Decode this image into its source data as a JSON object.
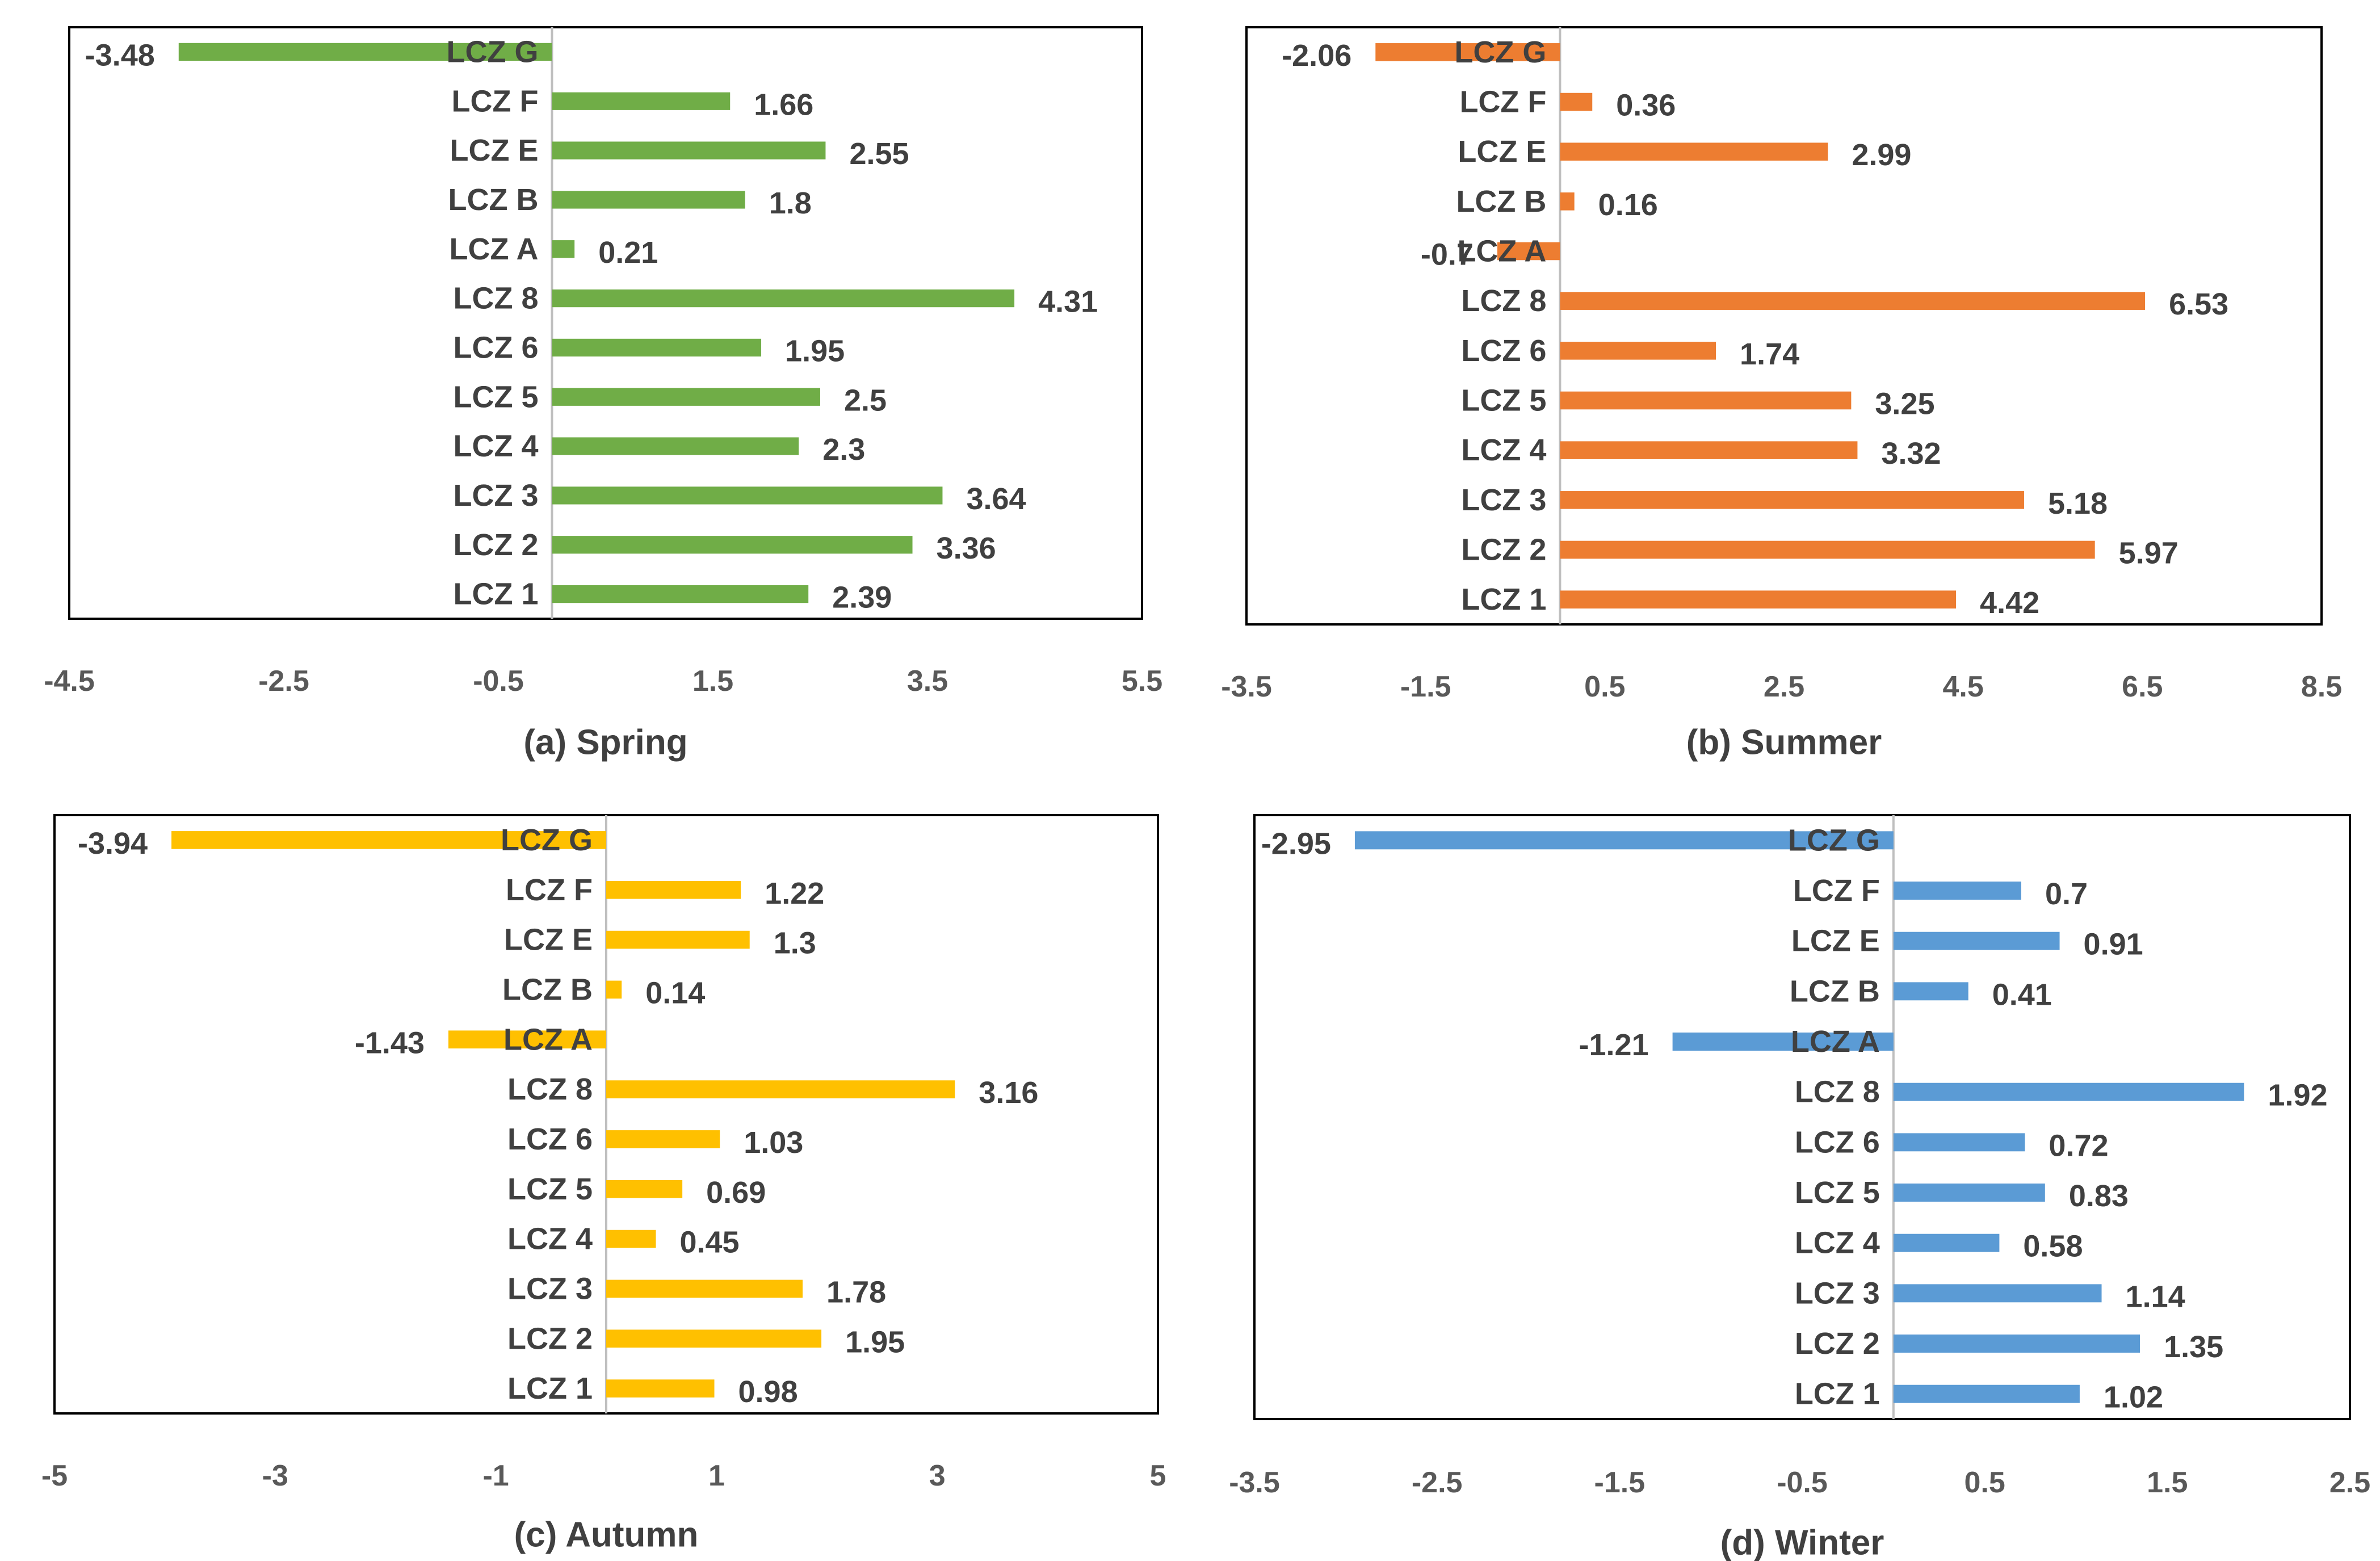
{
  "chart_data": [
    {
      "type": "bar",
      "orientation": "horizontal",
      "caption": "(a) Spring",
      "color": "#70AD47",
      "categories": [
        "LCZ G",
        "LCZ F",
        "LCZ E",
        "LCZ B",
        "LCZ A",
        "LCZ 8",
        "LCZ 6",
        "LCZ 5",
        "LCZ 4",
        "LCZ 3",
        "LCZ 2",
        "LCZ 1"
      ],
      "values": [
        -3.48,
        1.66,
        2.55,
        1.8,
        0.21,
        4.31,
        1.95,
        2.5,
        2.3,
        3.64,
        3.36,
        2.39
      ],
      "value_labels": [
        "-3.48",
        "1.66",
        "2.55",
        "1.8",
        "0.21",
        "4.31",
        "1.95",
        "2.5",
        "2.3",
        "3.64",
        "3.36",
        "2.39"
      ],
      "xlim": [
        -4.5,
        5.5
      ],
      "x_ticks": [
        "-4.5",
        "-2.5",
        "-0.5",
        "1.5",
        "3.5",
        "5.5"
      ],
      "grid": false,
      "legend": "none"
    },
    {
      "type": "bar",
      "orientation": "horizontal",
      "caption": "(b) Summer",
      "color": "#ED7D31",
      "categories": [
        "LCZ G",
        "LCZ F",
        "LCZ E",
        "LCZ B",
        "LCZ A",
        "LCZ 8",
        "LCZ 6",
        "LCZ 5",
        "LCZ 4",
        "LCZ 3",
        "LCZ 2",
        "LCZ 1"
      ],
      "values": [
        -2.06,
        0.36,
        2.99,
        0.16,
        -0.7,
        6.53,
        1.74,
        3.25,
        3.32,
        5.18,
        5.97,
        4.42
      ],
      "value_labels": [
        "-2.06",
        "0.36",
        "2.99",
        "0.16",
        "-0.7",
        "6.53",
        "1.74",
        "3.25",
        "3.32",
        "5.18",
        "5.97",
        "4.42"
      ],
      "xlim": [
        -3.5,
        8.5
      ],
      "x_ticks": [
        "-3.5",
        "-1.5",
        "0.5",
        "2.5",
        "4.5",
        "6.5",
        "8.5"
      ],
      "grid": false,
      "legend": "none"
    },
    {
      "type": "bar",
      "orientation": "horizontal",
      "caption": "(c) Autumn",
      "color": "#FFC000",
      "categories": [
        "LCZ G",
        "LCZ F",
        "LCZ E",
        "LCZ B",
        "LCZ A",
        "LCZ 8",
        "LCZ 6",
        "LCZ 5",
        "LCZ 4",
        "LCZ 3",
        "LCZ 2",
        "LCZ 1"
      ],
      "values": [
        -3.94,
        1.22,
        1.3,
        0.14,
        -1.43,
        3.16,
        1.03,
        0.69,
        0.45,
        1.78,
        1.95,
        0.98
      ],
      "value_labels": [
        "-3.94",
        "1.22",
        "1.3",
        "0.14",
        "-1.43",
        "3.16",
        "1.03",
        "0.69",
        "0.45",
        "1.78",
        "1.95",
        "0.98"
      ],
      "xlim": [
        -5,
        5
      ],
      "x_ticks": [
        "-5",
        "-3",
        "-1",
        "1",
        "3",
        "5"
      ],
      "grid": false,
      "legend": "none"
    },
    {
      "type": "bar",
      "orientation": "horizontal",
      "caption": "(d) Winter",
      "color": "#5B9BD5",
      "categories": [
        "LCZ G",
        "LCZ F",
        "LCZ E",
        "LCZ B",
        "LCZ A",
        "LCZ 8",
        "LCZ 6",
        "LCZ 5",
        "LCZ 4",
        "LCZ 3",
        "LCZ 2",
        "LCZ 1"
      ],
      "values": [
        -2.95,
        0.7,
        0.91,
        0.41,
        -1.21,
        1.92,
        0.72,
        0.83,
        0.58,
        1.14,
        1.35,
        1.02
      ],
      "value_labels": [
        "-2.95",
        "0.7",
        "0.91",
        "0.41",
        "-1.21",
        "1.92",
        "0.72",
        "0.83",
        "0.58",
        "1.14",
        "1.35",
        "1.02"
      ],
      "xlim": [
        -3.5,
        2.5
      ],
      "x_ticks": [
        "-3.5",
        "-2.5",
        "-1.5",
        "-0.5",
        "0.5",
        "1.5",
        "2.5"
      ],
      "grid": false,
      "legend": "none"
    }
  ]
}
